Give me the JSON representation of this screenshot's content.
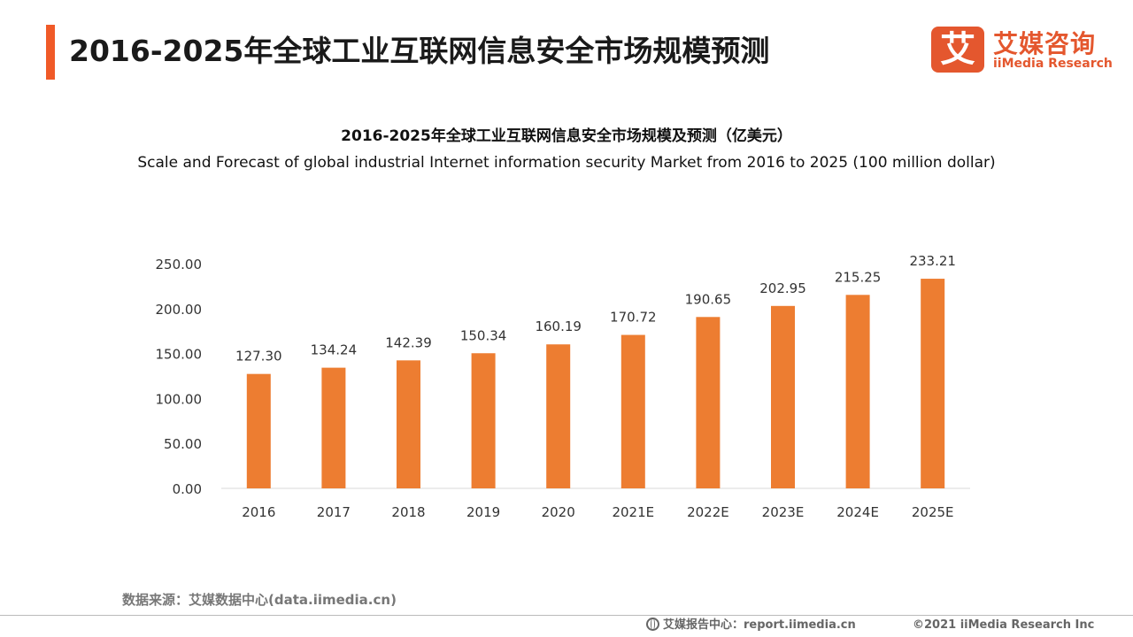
{
  "header": {
    "title": "2016-2025年全球工业互联网信息安全市场规模预测",
    "logo_mark": "艾",
    "logo_cn": "艾媒咨询",
    "logo_en": "iiMedia Research"
  },
  "colors": {
    "accent": "#f05a28",
    "bar": "#ed7d31",
    "logo": "#e4572e",
    "axis": "#d9d9d9"
  },
  "chart_data": {
    "type": "bar",
    "title": "2016-2025年全球工业互联网信息安全市场规模及预测（亿美元）",
    "subtitle": "Scale and Forecast of global industrial Internet information security Market from 2016 to 2025 (100 million dollar)",
    "categories": [
      "2016",
      "2017",
      "2018",
      "2019",
      "2020",
      "2021E",
      "2022E",
      "2023E",
      "2024E",
      "2025E"
    ],
    "values": [
      127.3,
      134.24,
      142.39,
      150.34,
      160.19,
      170.72,
      190.65,
      202.95,
      215.25,
      233.21
    ],
    "value_labels": [
      "127.30",
      "134.24",
      "142.39",
      "150.34",
      "160.19",
      "170.72",
      "190.65",
      "202.95",
      "215.25",
      "233.21"
    ],
    "y_ticks": [
      "0.00",
      "50.00",
      "100.00",
      "150.00",
      "200.00",
      "250.00"
    ],
    "ylim": [
      0,
      250
    ],
    "xlabel": "",
    "ylabel": "",
    "grid": false,
    "legend": "none"
  },
  "footer": {
    "source": "数据来源：艾媒数据中心(data.iimedia.cn)",
    "report_center": "艾媒报告中心：report.iimedia.cn",
    "copyright": "©2021  iiMedia Research  Inc"
  }
}
